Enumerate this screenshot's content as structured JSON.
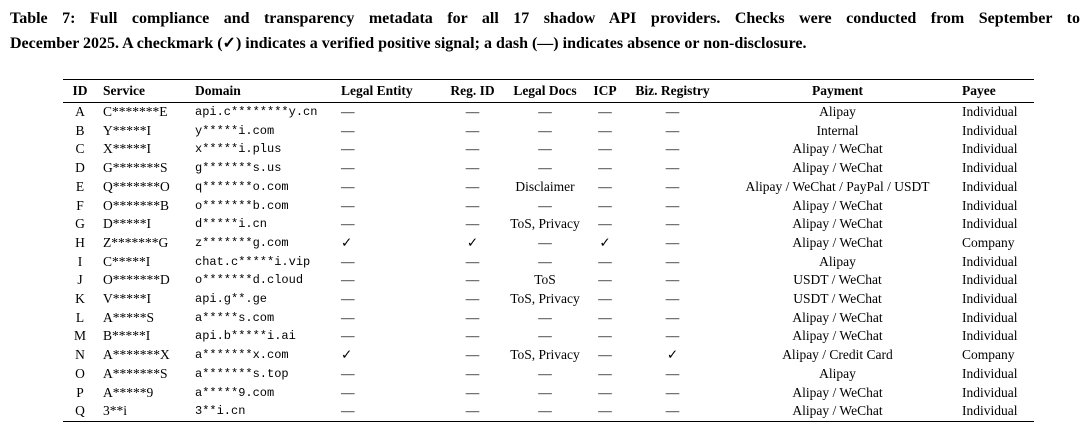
{
  "page": {
    "background_color": "#ffffff",
    "text_color": "#000000"
  },
  "caption": {
    "line1": "Table 7: Full compliance and transparency metadata for all 17 shadow API providers. Checks were conducted from September to",
    "line2": "December 2025. A checkmark (✓) indicates a verified positive signal; a dash (—) indicates absence or non-disclosure."
  },
  "table": {
    "columns": [
      "ID",
      "Service",
      "Domain",
      "Legal Entity",
      "Reg. ID",
      "Legal Docs",
      "ICP",
      "Biz. Registry",
      "Payment",
      "Payee"
    ],
    "column_keys": [
      "id",
      "service",
      "domain",
      "legal-entity",
      "reg-id",
      "legal-docs",
      "icp",
      "biz-registry",
      "payment",
      "payee"
    ],
    "symbols": {
      "checkmark": "✓",
      "dash": "—"
    },
    "rows": [
      [
        "A",
        "C*******E",
        "api.c********y.cn",
        "—",
        "—",
        "—",
        "—",
        "—",
        "Alipay",
        "Individual"
      ],
      [
        "B",
        "Y*****I",
        "y*****i.com",
        "—",
        "—",
        "—",
        "—",
        "—",
        "Internal",
        "Individual"
      ],
      [
        "C",
        "X*****I",
        "x*****i.plus",
        "—",
        "—",
        "—",
        "—",
        "—",
        "Alipay / WeChat",
        "Individual"
      ],
      [
        "D",
        "G*******S",
        "g*******s.us",
        "—",
        "—",
        "—",
        "—",
        "—",
        "Alipay / WeChat",
        "Individual"
      ],
      [
        "E",
        "Q*******O",
        "q*******o.com",
        "—",
        "—",
        "Disclaimer",
        "—",
        "—",
        "Alipay / WeChat / PayPal / USDT",
        "Individual"
      ],
      [
        "F",
        "O*******B",
        "o*******b.com",
        "—",
        "—",
        "—",
        "—",
        "—",
        "Alipay / WeChat",
        "Individual"
      ],
      [
        "G",
        "D*****I",
        "d*****i.cn",
        "—",
        "—",
        "ToS, Privacy",
        "—",
        "—",
        "Alipay / WeChat",
        "Individual"
      ],
      [
        "H",
        "Z*******G",
        "z*******g.com",
        "✓",
        "✓",
        "—",
        "✓",
        "—",
        "Alipay / WeChat",
        "Company"
      ],
      [
        "I",
        "C*****I",
        "chat.c*****i.vip",
        "—",
        "—",
        "—",
        "—",
        "—",
        "Alipay",
        "Individual"
      ],
      [
        "J",
        "O*******D",
        "o*******d.cloud",
        "—",
        "—",
        "ToS",
        "—",
        "—",
        "USDT / WeChat",
        "Individual"
      ],
      [
        "K",
        "V*****I",
        "api.g**.ge",
        "—",
        "—",
        "ToS, Privacy",
        "—",
        "—",
        "USDT / WeChat",
        "Individual"
      ],
      [
        "L",
        "A*****S",
        "a*****s.com",
        "—",
        "—",
        "—",
        "—",
        "—",
        "Alipay / WeChat",
        "Individual"
      ],
      [
        "M",
        "B*****I",
        "api.b*****i.ai",
        "—",
        "—",
        "—",
        "—",
        "—",
        "Alipay / WeChat",
        "Individual"
      ],
      [
        "N",
        "A*******X",
        "a*******x.com",
        "✓",
        "—",
        "ToS, Privacy",
        "—",
        "✓",
        "Alipay / Credit Card",
        "Company"
      ],
      [
        "O",
        "A*******S",
        "a*******s.top",
        "—",
        "—",
        "—",
        "—",
        "—",
        "Alipay",
        "Individual"
      ],
      [
        "P",
        "A*****9",
        "a*****9.com",
        "—",
        "—",
        "—",
        "—",
        "—",
        "Alipay / WeChat",
        "Individual"
      ],
      [
        "Q",
        "3**i",
        "3**i.cn",
        "—",
        "—",
        "—",
        "—",
        "—",
        "Alipay / WeChat",
        "Individual"
      ]
    ]
  }
}
